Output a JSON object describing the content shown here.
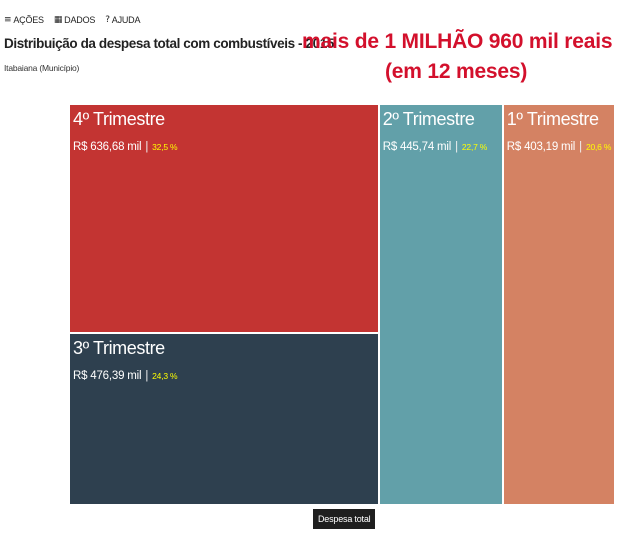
{
  "toolbar": {
    "items": [
      {
        "icon": "hamburger-icon",
        "glyph": "≡",
        "label": "AÇÕES"
      },
      {
        "icon": "table-icon",
        "glyph": "▦",
        "label": "DADOS"
      },
      {
        "icon": "help-icon",
        "glyph": "?",
        "label": "AJUDA"
      }
    ]
  },
  "annotation": {
    "line1": "mais de 1 MILHÃO 960 mil reais",
    "line2": "(em 12 meses)",
    "color": "#d3102c"
  },
  "chart_data": {
    "type": "treemap",
    "title": "Distribuição da despesa total com combustíveis - 2015",
    "subtitle": "Itabaiana (Município)",
    "legend": "Despesa total",
    "unit": "R$ mil",
    "items": [
      {
        "label": "4º Trimestre",
        "value": 636.68,
        "display": "R$ 636,68 mil",
        "pct": "32,5 %",
        "color": "#c33432"
      },
      {
        "label": "3º Trimestre",
        "value": 476.39,
        "display": "R$ 476,39 mil",
        "pct": "24,3 %",
        "color": "#2e404f"
      },
      {
        "label": "2º Trimestre",
        "value": 445.74,
        "display": "R$ 445,74 mil",
        "pct": "22,7 %",
        "color": "#62a0a9"
      },
      {
        "label": "1º Trimestre",
        "value": 403.19,
        "display": "R$ 403,19 mil",
        "pct": "20,6 %",
        "color": "#d48263"
      }
    ]
  }
}
